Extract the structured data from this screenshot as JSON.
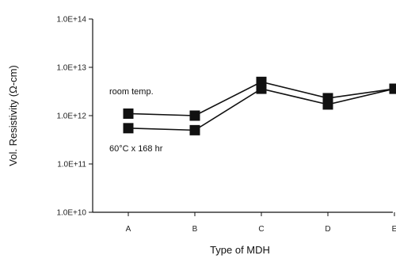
{
  "chart_data": {
    "type": "line",
    "categories": [
      "A",
      "B",
      "C",
      "D",
      "E"
    ],
    "xlabel": "Type of MDH",
    "ylabel": "Vol. Resistivity (Ω-cm)",
    "yscale": "log",
    "ylim": [
      10000000000.0,
      100000000000000.0
    ],
    "y_tick_labels": [
      "1.0E+10",
      "1.0E+11",
      "1.0E+12",
      "1.0E+13",
      "1.0E+14"
    ],
    "grid": false,
    "marker": "square",
    "series": [
      {
        "values": [
          1100000000000.0,
          1000000000000.0,
          5000000000000.0,
          2300000000000.0,
          3600000000000.0
        ]
      },
      {
        "values": [
          550000000000.0,
          500000000000.0,
          3600000000000.0,
          1700000000000.0,
          3600000000000.0
        ]
      }
    ],
    "annotations": [
      "room temp.",
      "60°C x 168 hr"
    ],
    "colors": {
      "line": "#111111",
      "marker": "#111111",
      "axis": "#111111"
    }
  }
}
